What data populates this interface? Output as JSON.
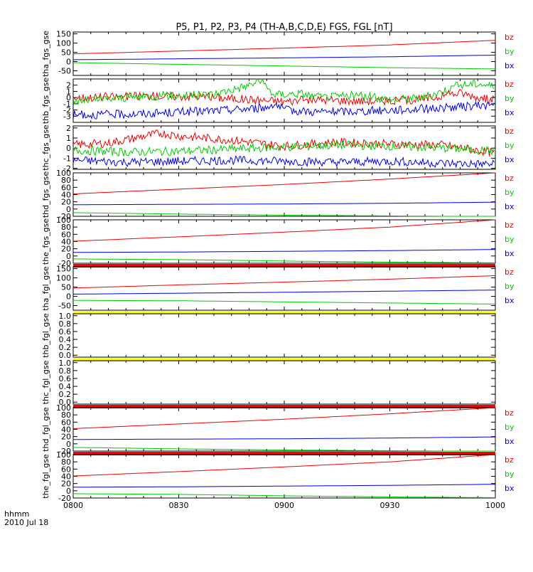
{
  "chart_data": {
    "title": "P5, P1, P2, P3, P4 (TH-A,B,C,D,E) FGS, FGL [nT]",
    "type": "line",
    "time_axis": {
      "ticks": [
        "0800",
        "0830",
        "0900",
        "0930",
        "1000"
      ],
      "range": [
        "0800",
        "1000"
      ],
      "label": "hhmm",
      "date": "2010 Jul 18"
    },
    "legend_colors": {
      "bx": "#0000ee",
      "by": "#00cc00",
      "bz": "#ee0000"
    },
    "panels": [
      {
        "ylabel": "tha_fgs_gse",
        "ylim": [
          -75,
          160
        ],
        "yticks": [
          "150",
          "100",
          "50",
          "0",
          "-50"
        ],
        "status_bar": null,
        "legend": [
          "bz",
          "by",
          "bx"
        ],
        "series": [
          {
            "name": "bz",
            "time_minutes": [
              0,
              30,
              60,
              90,
              120
            ],
            "values": [
              42,
              57,
              73,
              90,
              115
            ]
          },
          {
            "name": "by",
            "time_minutes": [
              0,
              30,
              60,
              90,
              120
            ],
            "values": [
              -6,
              -15,
              -24,
              -33,
              -40
            ]
          },
          {
            "name": "bx",
            "time_minutes": [
              0,
              30,
              60,
              90,
              120
            ],
            "values": [
              10,
              15,
              20,
              26,
              35
            ]
          }
        ]
      },
      {
        "ylabel": "thb_fgs_gse",
        "ylim": [
          -4,
          3
        ],
        "yticks": [
          "2",
          "1",
          "0",
          "-1",
          "-2",
          "-3"
        ],
        "status_bar": null,
        "legend": [
          "bz",
          "by",
          "bx"
        ],
        "series": [
          {
            "name": "bz",
            "time_minutes": [
              0,
              10,
              20,
              35,
              50,
              60,
              70,
              80,
              90,
              100,
              110,
              117,
              120
            ],
            "values": [
              0.0,
              0.1,
              0.3,
              0.2,
              -0.3,
              -0.6,
              -0.3,
              -0.5,
              -0.6,
              -0.2,
              0.8,
              -0.2,
              -0.4
            ]
          },
          {
            "name": "by",
            "time_minutes": [
              0,
              10,
              20,
              35,
              40,
              50,
              53,
              57,
              65,
              70,
              80,
              90,
              100,
              105,
              110,
              115,
              120
            ],
            "values": [
              -0.6,
              -0.2,
              0.2,
              0.4,
              0.6,
              2.0,
              2.8,
              0.5,
              0.7,
              0.0,
              0.4,
              -0.3,
              0.0,
              1.1,
              2.0,
              2.3,
              1.8
            ]
          },
          {
            "name": "bx",
            "time_minutes": [
              0,
              20,
              40,
              55,
              57,
              60,
              70,
              80,
              90,
              100,
              110,
              120
            ],
            "values": [
              -2.8,
              -2.6,
              -2.1,
              -1.6,
              -0.9,
              -2.0,
              -2.3,
              -2.2,
              -2.0,
              -1.8,
              -1.5,
              -1.2
            ]
          }
        ]
      },
      {
        "ylabel": "thc_fgs_gse",
        "ylim": [
          -2.1,
          2.2
        ],
        "yticks": [
          "2",
          "1",
          "0",
          "-1",
          "-2"
        ],
        "status_bar": null,
        "legend": [
          "bz",
          "by",
          "bx"
        ],
        "series": [
          {
            "name": "bz",
            "time_minutes": [
              0,
              10,
              25,
              30,
              45,
              60,
              75,
              90,
              105,
              120
            ],
            "values": [
              0.3,
              0.5,
              1.5,
              1.2,
              0.8,
              0.2,
              0.6,
              0.4,
              0.3,
              -0.5
            ]
          },
          {
            "name": "by",
            "time_minutes": [
              0,
              15,
              30,
              45,
              60,
              75,
              90,
              105,
              120
            ],
            "values": [
              -0.2,
              -0.4,
              -0.3,
              -0.1,
              0.1,
              0.3,
              0.2,
              0.0,
              -0.3
            ]
          },
          {
            "name": "bx",
            "time_minutes": [
              0,
              15,
              30,
              45,
              60,
              75,
              90,
              105,
              120
            ],
            "values": [
              -1.2,
              -1.4,
              -1.3,
              -1.2,
              -1.3,
              -1.4,
              -1.3,
              -1.5,
              -1.6
            ]
          }
        ]
      },
      {
        "ylabel": "thd_fgs_gse",
        "ylim": [
          -20,
          100
        ],
        "yticks": [
          "100",
          "80",
          "60",
          "40",
          "20",
          "0",
          "-20"
        ],
        "status_bar": null,
        "legend": [
          "bz",
          "by",
          "bx"
        ],
        "series": [
          {
            "name": "bz",
            "time_minutes": [
              0,
              30,
              60,
              90,
              120
            ],
            "values": [
              42,
              55,
              68,
              83,
              100
            ]
          },
          {
            "name": "by",
            "time_minutes": [
              0,
              30,
              60,
              90,
              120
            ],
            "values": [
              -10,
              -14,
              -17,
              -19,
              -21
            ]
          },
          {
            "name": "bx",
            "time_minutes": [
              0,
              30,
              60,
              90,
              120
            ],
            "values": [
              12,
              13,
              14,
              16,
              19
            ]
          }
        ]
      },
      {
        "ylabel": "the_fgs_gse",
        "ylim": [
          -20,
          100
        ],
        "yticks": [
          "100",
          "80",
          "60",
          "40",
          "20",
          "0",
          "-20"
        ],
        "status_bar": "#ff0000",
        "legend": [
          "bz",
          "by",
          "bx"
        ],
        "series": [
          {
            "name": "bz",
            "time_minutes": [
              0,
              30,
              60,
              90,
              120
            ],
            "values": [
              41,
              53,
              66,
              80,
              100
            ]
          },
          {
            "name": "by",
            "time_minutes": [
              0,
              30,
              60,
              90,
              120
            ],
            "values": [
              -8,
              -10,
              -14,
              -17,
              -19
            ]
          },
          {
            "name": "bx",
            "time_minutes": [
              0,
              30,
              60,
              90,
              120
            ],
            "values": [
              10,
              11,
              13,
              15,
              18
            ]
          }
        ]
      },
      {
        "ylabel": "tha_fgl_gse",
        "ylim": [
          -75,
          160
        ],
        "yticks": [
          "150",
          "100",
          "50",
          "0",
          "-50"
        ],
        "status_bar": "#ffff00",
        "legend": [
          "bz",
          "by",
          "bx"
        ],
        "series": [
          {
            "name": "bz",
            "time_minutes": [
              0,
              30,
              60,
              90,
              120
            ],
            "values": [
              45,
              62,
              77,
              93,
              112
            ]
          },
          {
            "name": "by",
            "time_minutes": [
              0,
              30,
              60,
              90,
              120
            ],
            "values": [
              -22,
              -24,
              -30,
              -36,
              -42
            ]
          },
          {
            "name": "bx",
            "time_minutes": [
              0,
              30,
              60,
              90,
              120
            ],
            "values": [
              12,
              17,
              22,
              28,
              34
            ]
          }
        ]
      },
      {
        "ylabel": "thb_fgl_gse",
        "ylim": [
          -0.05,
          1.05
        ],
        "yticks": [
          "1.0",
          "0.8",
          "0.6",
          "0.4",
          "0.2",
          "0.0"
        ],
        "status_bar": "#ffff00",
        "legend": [],
        "series": []
      },
      {
        "ylabel": "thc_fgl_gse",
        "ylim": [
          -0.05,
          1.05
        ],
        "yticks": [
          "1.0",
          "0.8",
          "0.6",
          "0.4",
          "0.2",
          "0.0"
        ],
        "status_bar": "#ff0000",
        "legend": [],
        "series": []
      },
      {
        "ylabel": "thd_fgl_gse",
        "ylim": [
          -20,
          100
        ],
        "yticks": [
          "100",
          "80",
          "60",
          "40",
          "20",
          "0",
          "-20"
        ],
        "status_bar": "#ff0000",
        "legend": [
          "bz",
          "by",
          "bx"
        ],
        "series": [
          {
            "name": "bz",
            "time_minutes": [
              0,
              30,
              60,
              90,
              120
            ],
            "values": [
              42,
              55,
              68,
              83,
              100
            ]
          },
          {
            "name": "by",
            "time_minutes": [
              0,
              30,
              60,
              90,
              120
            ],
            "values": [
              -10,
              -14,
              -17,
              -19,
              -21
            ]
          },
          {
            "name": "bx",
            "time_minutes": [
              0,
              30,
              60,
              90,
              120
            ],
            "values": [
              12,
              13,
              14,
              16,
              19
            ]
          }
        ]
      },
      {
        "ylabel": "the_fgl_gse",
        "ylim": [
          -20,
          100
        ],
        "yticks": [
          "100",
          "80",
          "60",
          "40",
          "20",
          "0",
          "-20"
        ],
        "status_bar": null,
        "legend": [
          "bz",
          "by",
          "bx"
        ],
        "series": [
          {
            "name": "bz",
            "time_minutes": [
              0,
              30,
              60,
              90,
              120
            ],
            "values": [
              41,
              53,
              66,
              80,
              100
            ]
          },
          {
            "name": "by",
            "time_minutes": [
              0,
              30,
              60,
              90,
              120
            ],
            "values": [
              -8,
              -10,
              -14,
              -17,
              -19
            ]
          },
          {
            "name": "bx",
            "time_minutes": [
              0,
              30,
              60,
              90,
              120
            ],
            "values": [
              10,
              11,
              13,
              15,
              18
            ]
          }
        ]
      }
    ]
  }
}
